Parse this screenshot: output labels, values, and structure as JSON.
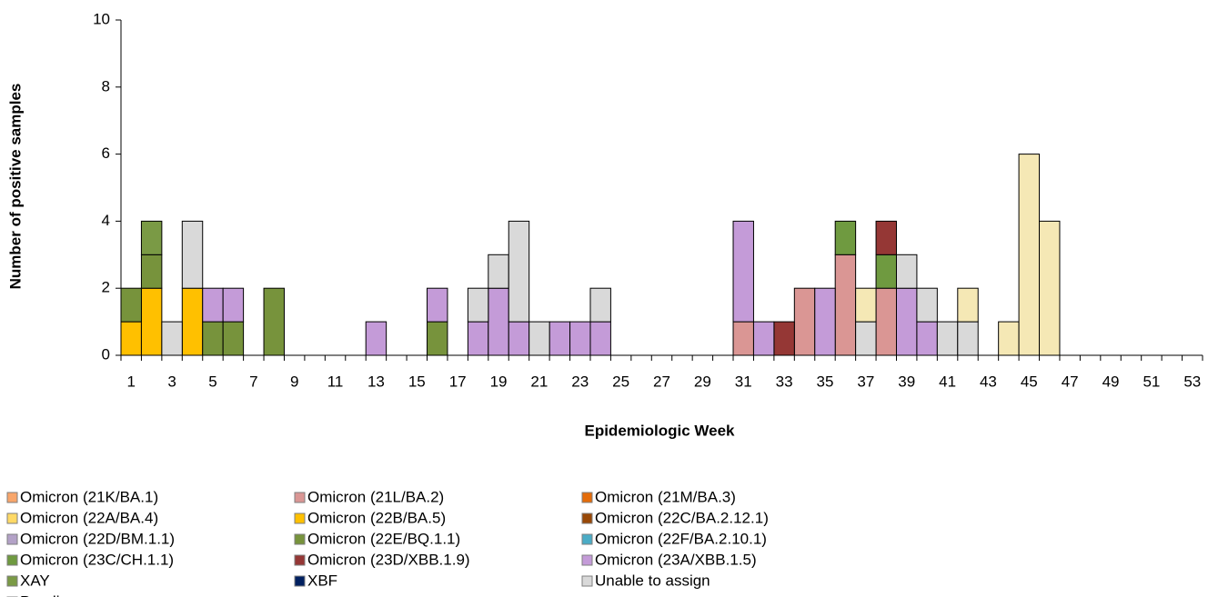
{
  "chart_data": {
    "type": "stacked_bar",
    "y_label": "Number of positive samples",
    "x_label": "Epidemiologic Week",
    "ylim": [
      0,
      10
    ],
    "yticks": [
      0,
      2,
      4,
      6,
      8,
      10
    ],
    "categories": [
      "1",
      null,
      "3",
      null,
      "5",
      null,
      "7",
      null,
      "9",
      null,
      "11",
      null,
      "13",
      null,
      "15",
      null,
      "17",
      null,
      "19",
      null,
      "21",
      null,
      "23",
      null,
      "25",
      null,
      "27",
      null,
      "29",
      null,
      "31",
      null,
      "33",
      null,
      "35",
      null,
      "37",
      null,
      "39",
      null,
      "41",
      null,
      "43",
      null,
      "45",
      null,
      "47",
      null,
      "49",
      null,
      "51",
      null,
      "53"
    ],
    "series": [
      {
        "name": "Omicron (21K/BA.1)",
        "color": "#f8a66b",
        "values": [
          0,
          0,
          0,
          0,
          0,
          0,
          0,
          0,
          0,
          0,
          0,
          0,
          0,
          0,
          0,
          0,
          0,
          0,
          0,
          0,
          0,
          0,
          0,
          0,
          0,
          0,
          0,
          0,
          0,
          0,
          0,
          0,
          0,
          0,
          0,
          0,
          0,
          0,
          0,
          0,
          0,
          0,
          0,
          0,
          0,
          0,
          0,
          0,
          0,
          0,
          0,
          0,
          0
        ]
      },
      {
        "name": "Omicron (21L/BA.2)",
        "color": "#da9694",
        "values": [
          0,
          0,
          0,
          0,
          0,
          0,
          0,
          0,
          0,
          0,
          0,
          0,
          0,
          0,
          0,
          0,
          0,
          0,
          0,
          0,
          0,
          0,
          0,
          0,
          0,
          0,
          0,
          0,
          0,
          0,
          1,
          0,
          0,
          2,
          0,
          3,
          0,
          2,
          0,
          0,
          0,
          0,
          0,
          0,
          0,
          0,
          0,
          0,
          0,
          0,
          0,
          0,
          0
        ]
      },
      {
        "name": "Omicron (21M/BA.3)",
        "color": "#e46c0a",
        "values": [
          0,
          0,
          0,
          0,
          0,
          0,
          0,
          0,
          0,
          0,
          0,
          0,
          0,
          0,
          0,
          0,
          0,
          0,
          0,
          0,
          0,
          0,
          0,
          0,
          0,
          0,
          0,
          0,
          0,
          0,
          0,
          0,
          0,
          0,
          0,
          0,
          0,
          0,
          0,
          0,
          0,
          0,
          0,
          0,
          0,
          0,
          0,
          0,
          0,
          0,
          0,
          0,
          0
        ]
      },
      {
        "name": "Omicron (22A/BA.4)",
        "color": "#ffd966",
        "values": [
          0,
          0,
          0,
          0,
          0,
          0,
          0,
          0,
          0,
          0,
          0,
          0,
          0,
          0,
          0,
          0,
          0,
          0,
          0,
          0,
          0,
          0,
          0,
          0,
          0,
          0,
          0,
          0,
          0,
          0,
          0,
          0,
          0,
          0,
          0,
          0,
          0,
          0,
          0,
          0,
          0,
          0,
          0,
          0,
          0,
          0,
          0,
          0,
          0,
          0,
          0,
          0,
          0
        ]
      },
      {
        "name": "Omicron (22B/BA.5)",
        "color": "#ffc000",
        "values": [
          1,
          2,
          0,
          2,
          0,
          0,
          0,
          0,
          0,
          0,
          0,
          0,
          0,
          0,
          0,
          0,
          0,
          0,
          0,
          0,
          0,
          0,
          0,
          0,
          0,
          0,
          0,
          0,
          0,
          0,
          0,
          0,
          0,
          0,
          0,
          0,
          0,
          0,
          0,
          0,
          0,
          0,
          0,
          0,
          0,
          0,
          0,
          0,
          0,
          0,
          0,
          0,
          0
        ]
      },
      {
        "name": "Omicron (22C/BA.2.12.1)",
        "color": "#984807",
        "values": [
          0,
          0,
          0,
          0,
          0,
          0,
          0,
          0,
          0,
          0,
          0,
          0,
          0,
          0,
          0,
          0,
          0,
          0,
          0,
          0,
          0,
          0,
          0,
          0,
          0,
          0,
          0,
          0,
          0,
          0,
          0,
          0,
          0,
          0,
          0,
          0,
          0,
          0,
          0,
          0,
          0,
          0,
          0,
          0,
          0,
          0,
          0,
          0,
          0,
          0,
          0,
          0,
          0
        ]
      },
      {
        "name": "Omicron (22D/BM.1.1)",
        "color": "#b3a2c7",
        "values": [
          0,
          0,
          0,
          0,
          0,
          0,
          0,
          0,
          0,
          0,
          0,
          0,
          0,
          0,
          0,
          0,
          0,
          0,
          0,
          0,
          0,
          0,
          0,
          0,
          0,
          0,
          0,
          0,
          0,
          0,
          0,
          0,
          0,
          0,
          0,
          0,
          0,
          0,
          0,
          0,
          0,
          0,
          0,
          0,
          0,
          0,
          0,
          0,
          0,
          0,
          0,
          0,
          0
        ]
      },
      {
        "name": "Omicron (22E/BQ.1.1)",
        "color": "#77933c",
        "values": [
          1,
          1,
          0,
          0,
          1,
          1,
          0,
          2,
          0,
          0,
          0,
          0,
          0,
          0,
          0,
          1,
          0,
          0,
          0,
          0,
          0,
          0,
          0,
          0,
          0,
          0,
          0,
          0,
          0,
          0,
          0,
          0,
          0,
          0,
          0,
          0,
          0,
          0,
          0,
          0,
          0,
          0,
          0,
          0,
          0,
          0,
          0,
          0,
          0,
          0,
          0,
          0,
          0
        ]
      },
      {
        "name": "Omicron (22F/BA.2.10.1)",
        "color": "#4bacc6",
        "values": [
          0,
          0,
          0,
          0,
          0,
          0,
          0,
          0,
          0,
          0,
          0,
          0,
          0,
          0,
          0,
          0,
          0,
          0,
          0,
          0,
          0,
          0,
          0,
          0,
          0,
          0,
          0,
          0,
          0,
          0,
          0,
          0,
          0,
          0,
          0,
          0,
          0,
          0,
          0,
          0,
          0,
          0,
          0,
          0,
          0,
          0,
          0,
          0,
          0,
          0,
          0,
          0,
          0
        ]
      },
      {
        "name": "Omicron (23C/CH.1.1)",
        "color": "#6f9a40",
        "values": [
          0,
          0,
          0,
          0,
          0,
          0,
          0,
          0,
          0,
          0,
          0,
          0,
          0,
          0,
          0,
          0,
          0,
          0,
          0,
          0,
          0,
          0,
          0,
          0,
          0,
          0,
          0,
          0,
          0,
          0,
          0,
          0,
          0,
          0,
          0,
          1,
          0,
          1,
          0,
          0,
          0,
          0,
          0,
          0,
          0,
          0,
          0,
          0,
          0,
          0,
          0,
          0,
          0
        ]
      },
      {
        "name": "Omicron (23D/XBB.1.9)",
        "color": "#953735",
        "values": [
          0,
          0,
          0,
          0,
          0,
          0,
          0,
          0,
          0,
          0,
          0,
          0,
          0,
          0,
          0,
          0,
          0,
          0,
          0,
          0,
          0,
          0,
          0,
          0,
          0,
          0,
          0,
          0,
          0,
          0,
          0,
          0,
          1,
          0,
          0,
          0,
          0,
          1,
          0,
          0,
          0,
          0,
          0,
          0,
          0,
          0,
          0,
          0,
          0,
          0,
          0,
          0,
          0
        ]
      },
      {
        "name": "Omicron (23A/XBB.1.5)",
        "color": "#c49bd8",
        "values": [
          0,
          0,
          0,
          0,
          1,
          1,
          0,
          0,
          0,
          0,
          0,
          0,
          1,
          0,
          0,
          1,
          0,
          1,
          2,
          1,
          0,
          1,
          1,
          1,
          0,
          0,
          0,
          0,
          0,
          0,
          3,
          1,
          0,
          0,
          2,
          0,
          0,
          0,
          2,
          1,
          0,
          0,
          0,
          0,
          0,
          0,
          0,
          0,
          0,
          0,
          0,
          0,
          0
        ]
      },
      {
        "name": "XAY",
        "color": "#7a9a45",
        "values": [
          0,
          1,
          0,
          0,
          0,
          0,
          0,
          0,
          0,
          0,
          0,
          0,
          0,
          0,
          0,
          0,
          0,
          0,
          0,
          0,
          0,
          0,
          0,
          0,
          0,
          0,
          0,
          0,
          0,
          0,
          0,
          0,
          0,
          0,
          0,
          0,
          0,
          0,
          0,
          0,
          0,
          0,
          0,
          0,
          0,
          0,
          0,
          0,
          0,
          0,
          0,
          0,
          0
        ]
      },
      {
        "name": "XBF",
        "color": "#002060",
        "values": [
          0,
          0,
          0,
          0,
          0,
          0,
          0,
          0,
          0,
          0,
          0,
          0,
          0,
          0,
          0,
          0,
          0,
          0,
          0,
          0,
          0,
          0,
          0,
          0,
          0,
          0,
          0,
          0,
          0,
          0,
          0,
          0,
          0,
          0,
          0,
          0,
          0,
          0,
          0,
          0,
          0,
          0,
          0,
          0,
          0,
          0,
          0,
          0,
          0,
          0,
          0,
          0,
          0
        ]
      },
      {
        "name": "Unable to assign",
        "color": "#d9d9d9",
        "values": [
          0,
          0,
          1,
          2,
          0,
          0,
          0,
          0,
          0,
          0,
          0,
          0,
          0,
          0,
          0,
          0,
          0,
          1,
          1,
          3,
          1,
          0,
          0,
          1,
          0,
          0,
          0,
          0,
          0,
          0,
          0,
          0,
          0,
          0,
          0,
          0,
          1,
          0,
          1,
          1,
          1,
          1,
          0,
          0,
          0,
          0,
          0,
          0,
          0,
          0,
          0,
          0,
          0
        ]
      },
      {
        "name": "Pending",
        "color": "#f5e8b5",
        "values": [
          0,
          0,
          0,
          0,
          0,
          0,
          0,
          0,
          0,
          0,
          0,
          0,
          0,
          0,
          0,
          0,
          0,
          0,
          0,
          0,
          0,
          0,
          0,
          0,
          0,
          0,
          0,
          0,
          0,
          0,
          0,
          0,
          0,
          0,
          0,
          0,
          1,
          0,
          0,
          0,
          0,
          1,
          0,
          1,
          6,
          4,
          0,
          0,
          0,
          0,
          0,
          0,
          0
        ]
      }
    ]
  }
}
